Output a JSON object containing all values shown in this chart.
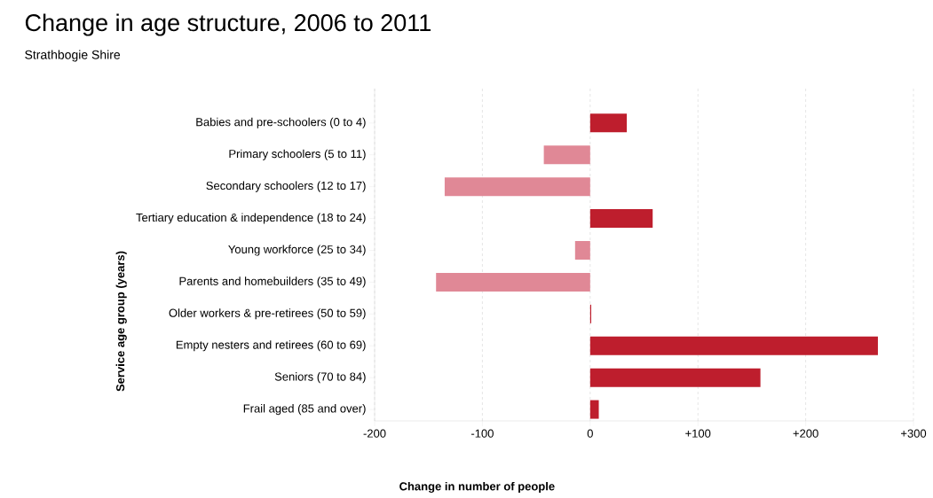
{
  "chart_data": {
    "type": "bar",
    "orientation": "horizontal",
    "title": "Change in age structure, 2006 to 2011",
    "subtitle": "Strathbogie Shire",
    "xlabel": "Change in number of people",
    "ylabel": "Service age group (years)",
    "categories": [
      "Babies and pre-schoolers (0 to 4)",
      "Primary schoolers (5 to 11)",
      "Secondary schoolers (12 to 17)",
      "Tertiary education & independence (18 to 24)",
      "Young workforce (25 to 34)",
      "Parents and homebuilders (35 to 49)",
      "Older workers & pre-retirees (50 to 59)",
      "Empty nesters and retirees (60 to 69)",
      "Seniors (70 to 84)",
      "Frail aged (85 and over)"
    ],
    "values": [
      34,
      -43,
      -135,
      58,
      -14,
      -143,
      1,
      267,
      158,
      8
    ],
    "colors": [
      "#be1e2d",
      "#e08896",
      "#e08896",
      "#be1e2d",
      "#e08896",
      "#e08896",
      "#be1e2d",
      "#be1e2d",
      "#be1e2d",
      "#be1e2d"
    ],
    "xlim": [
      -200,
      300
    ],
    "xticks": [
      -200,
      -100,
      0,
      {
        "value": 100,
        "label": "+100"
      },
      {
        "value": 200,
        "label": "+200"
      },
      {
        "value": 300,
        "label": "+300"
      }
    ],
    "grid": "x"
  }
}
